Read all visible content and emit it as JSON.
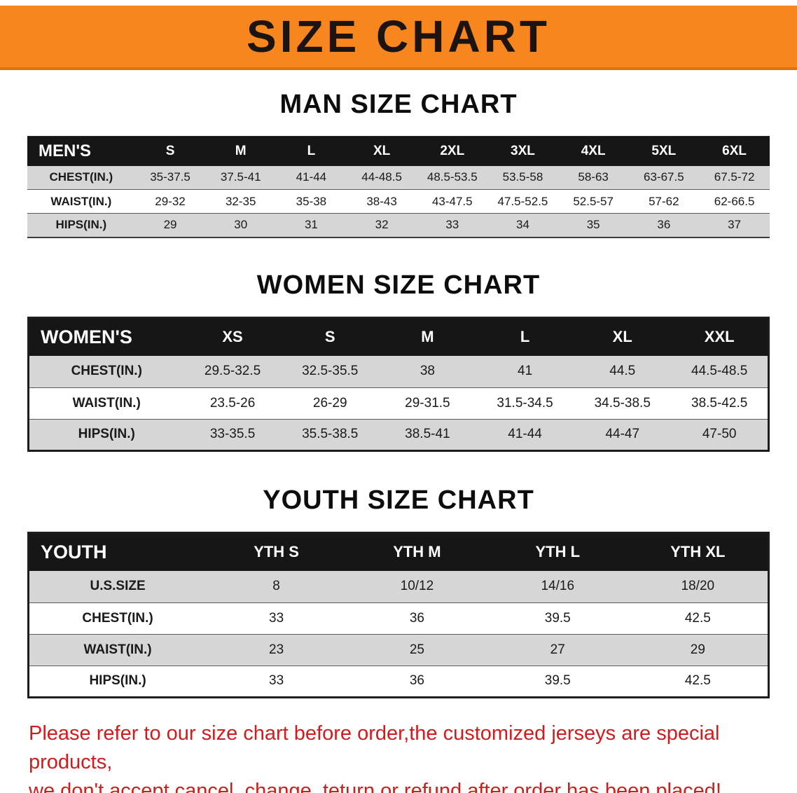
{
  "banner": {
    "title": "SIZE CHART"
  },
  "colors": {
    "accent_orange": "#f6861d",
    "banner_edge": "#e2730a",
    "header_black": "#161616",
    "row_gray": "#d6d6d6",
    "note_red": "#cf1d1d"
  },
  "men": {
    "heading": "MAN SIZE CHART",
    "header": [
      "MEN'S",
      "S",
      "M",
      "L",
      "XL",
      "2XL",
      "3XL",
      "4XL",
      "5XL",
      "6XL"
    ],
    "rows": [
      [
        "CHEST(IN.)",
        "35-37.5",
        "37.5-41",
        "41-44",
        "44-48.5",
        "48.5-53.5",
        "53.5-58",
        "58-63",
        "63-67.5",
        "67.5-72"
      ],
      [
        "WAIST(IN.)",
        "29-32",
        "32-35",
        "35-38",
        "38-43",
        "43-47.5",
        "47.5-52.5",
        "52.5-57",
        "57-62",
        "62-66.5"
      ],
      [
        "HIPS(IN.)",
        "29",
        "30",
        "31",
        "32",
        "33",
        "34",
        "35",
        "36",
        "37"
      ]
    ]
  },
  "women": {
    "heading": "WOMEN SIZE CHART",
    "header": [
      "WOMEN'S",
      "XS",
      "S",
      "M",
      "L",
      "XL",
      "XXL"
    ],
    "rows": [
      [
        "CHEST(IN.)",
        "29.5-32.5",
        "32.5-35.5",
        "38",
        "41",
        "44.5",
        "44.5-48.5"
      ],
      [
        "WAIST(IN.)",
        "23.5-26",
        "26-29",
        "29-31.5",
        "31.5-34.5",
        "34.5-38.5",
        "38.5-42.5"
      ],
      [
        "HIPS(IN.)",
        "33-35.5",
        "35.5-38.5",
        "38.5-41",
        "41-44",
        "44-47",
        "47-50"
      ]
    ]
  },
  "youth": {
    "heading": "YOUTH SIZE CHART",
    "header": [
      "YOUTH",
      "YTH S",
      "YTH M",
      "YTH L",
      "YTH XL"
    ],
    "rows": [
      [
        "U.S.SIZE",
        "8",
        "10/12",
        "14/16",
        "18/20"
      ],
      [
        "CHEST(IN.)",
        "33",
        "36",
        "39.5",
        "42.5"
      ],
      [
        "WAIST(IN.)",
        "23",
        "25",
        "27",
        "29"
      ],
      [
        "HIPS(IN.)",
        "33",
        "36",
        "39.5",
        "42.5"
      ]
    ]
  },
  "disclaimer": {
    "line1": "Please refer to our size chart before order,the customized jerseys are special products,",
    "line2": "we don't accept cancel, change, teturn or refund after order has been placed!"
  }
}
